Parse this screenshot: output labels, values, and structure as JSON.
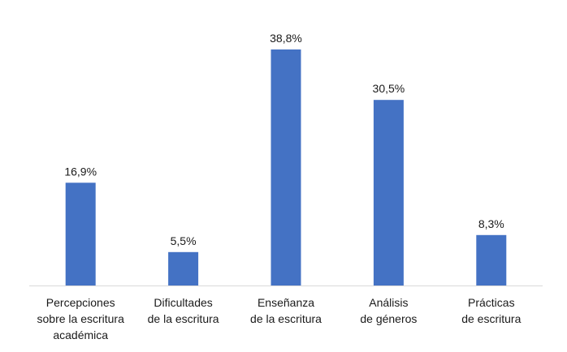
{
  "chart_data": {
    "type": "bar",
    "title": "",
    "xlabel": "",
    "ylabel": "",
    "categories": [
      [
        "Percepciones",
        "sobre la escritura",
        "académica"
      ],
      [
        "Dificultades",
        "de la escritura"
      ],
      [
        "Enseñanza",
        "de la escritura"
      ],
      [
        "Análisis",
        "de géneros"
      ],
      [
        "Prácticas",
        "de escritura"
      ]
    ],
    "values": [
      16.9,
      5.5,
      38.8,
      30.5,
      8.3
    ],
    "value_labels": [
      "16,9%",
      "5,5%",
      "38,8%",
      "30,5%",
      "8,3%"
    ],
    "ylim": [
      0,
      38.8
    ],
    "grid": false,
    "legend": "none",
    "bar_color": "#4472C4",
    "axis_color": "#d9d9d9"
  }
}
